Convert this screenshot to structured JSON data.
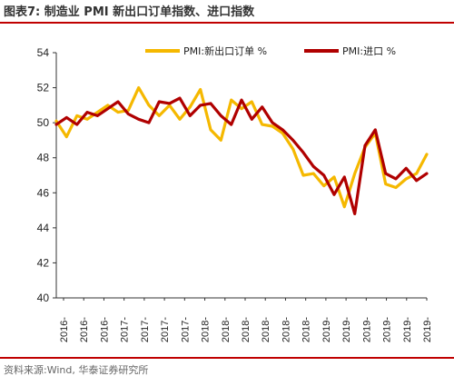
{
  "header": {
    "title": "图表7:  制造业 PMI 新出口订单指数、进口指数"
  },
  "footer": {
    "source": "资料来源:Wind, 华泰证券研究所"
  },
  "colors": {
    "accent_rule": "#c00000",
    "export_series": "#f5b800",
    "import_series": "#b00000"
  },
  "chart_data": {
    "type": "line",
    "ylim": [
      40,
      54
    ],
    "yticks": [
      40,
      42,
      44,
      46,
      48,
      50,
      52,
      54
    ],
    "x_tick_labels": [
      "2016-",
      "2016-",
      "2016-",
      "2017-",
      "2017-",
      "2017-",
      "2017-",
      "2018-",
      "2018-",
      "2018-",
      "2018-",
      "2018-",
      "2018-",
      "2019-",
      "2019-",
      "2019-",
      "2019-",
      "2019-",
      "2019-"
    ],
    "x_tick_labels_bottom": [
      "2016",
      "2016",
      "2016",
      "2017",
      "2017",
      "2017",
      "2017",
      "2018",
      "2018",
      "2018",
      "2018",
      "2018",
      "2018",
      "2019",
      "2019",
      "2019",
      "2019",
      "2019",
      "2019"
    ],
    "legend_position": "top",
    "series": [
      {
        "name": "PMI:新出口订单 %",
        "color": "#f5b800",
        "values": [
          50.1,
          49.2,
          50.4,
          50.2,
          50.6,
          51.0,
          50.6,
          50.7,
          52.0,
          51.0,
          50.4,
          51.0,
          50.2,
          50.9,
          51.9,
          49.6,
          49.0,
          51.3,
          50.8,
          51.2,
          49.9,
          49.8,
          49.4,
          48.5,
          47.0,
          47.1,
          46.4,
          46.9,
          45.2,
          47.1,
          48.6,
          49.4,
          46.5,
          46.3,
          46.8,
          47.1,
          48.2
        ]
      },
      {
        "name": "PMI:进口 %",
        "color": "#b00000",
        "values": [
          49.9,
          50.3,
          49.9,
          50.6,
          50.4,
          50.8,
          51.2,
          50.5,
          50.2,
          50.0,
          51.2,
          51.1,
          51.4,
          50.4,
          51.0,
          51.1,
          50.4,
          49.9,
          51.3,
          50.2,
          50.9,
          50.0,
          49.6,
          49.0,
          48.3,
          47.5,
          47.0,
          45.9,
          46.9,
          44.8,
          48.7,
          49.6,
          47.1,
          46.8,
          47.4,
          46.7,
          47.1
        ]
      }
    ]
  }
}
